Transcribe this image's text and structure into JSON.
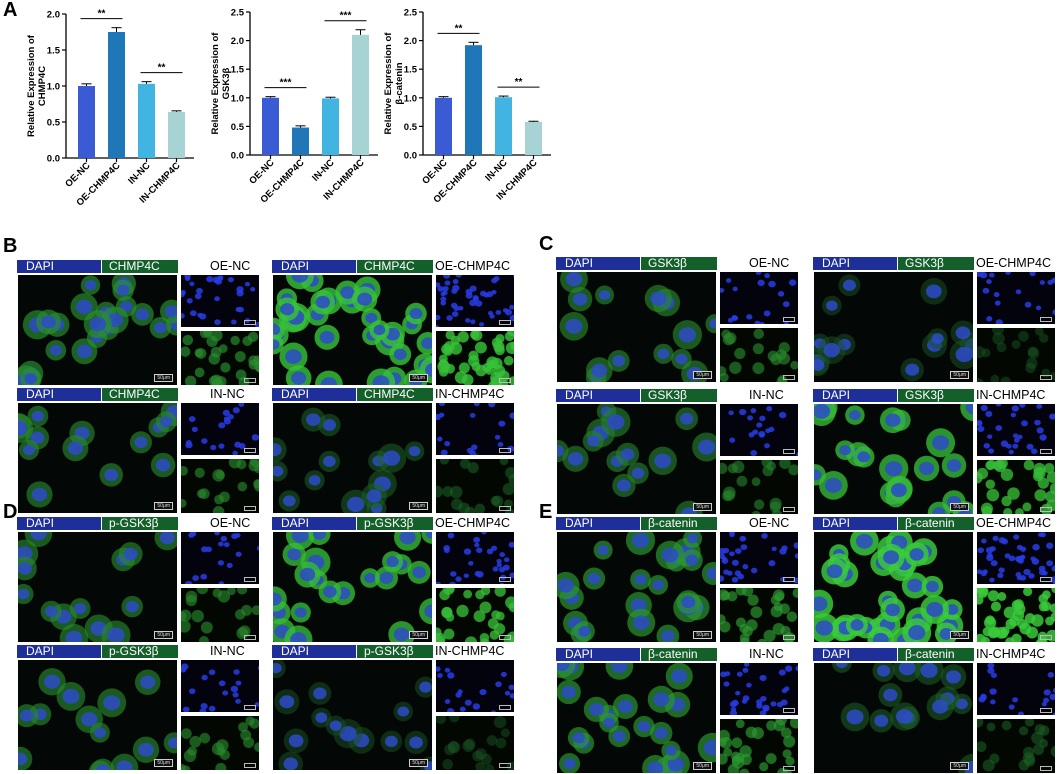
{
  "panel_labels": {
    "A": "A",
    "B": "B",
    "C": "C",
    "D": "D",
    "E": "E"
  },
  "chart_data": [
    {
      "type": "bar",
      "categories": [
        "OE-NC",
        "OE-CHMP4C",
        "IN-NC",
        "IN-CHMP4C"
      ],
      "values": [
        1.0,
        1.75,
        1.03,
        0.64
      ],
      "errors": [
        0.03,
        0.06,
        0.03,
        0.015
      ],
      "colors": [
        "#3b5bd4",
        "#1f77b8",
        "#41b4e2",
        "#a8d3d4"
      ],
      "title": "",
      "xlabel": "",
      "ylabel": "Relative Expression of\nCHMP4C",
      "ylim": [
        0,
        2.0
      ],
      "yticks": [
        "0.0",
        "0.5",
        "1.0",
        "1.5",
        "2.0"
      ],
      "significance": [
        {
          "from": 0,
          "to": 1,
          "label": "**"
        },
        {
          "from": 2,
          "to": 3,
          "label": "**"
        }
      ],
      "grid": false,
      "legend": "none"
    },
    {
      "type": "bar",
      "categories": [
        "OE-NC",
        "OE-CHMP4C",
        "IN-NC",
        "IN-CHMP4C"
      ],
      "values": [
        1.0,
        0.48,
        0.99,
        2.1
      ],
      "errors": [
        0.02,
        0.03,
        0.02,
        0.09
      ],
      "colors": [
        "#3b5bd4",
        "#1f77b8",
        "#41b4e2",
        "#a8d3d4"
      ],
      "title": "",
      "xlabel": "",
      "ylabel": "Relative Expression of\nGSK3β",
      "ylim": [
        0,
        2.5
      ],
      "yticks": [
        "0.0",
        "0.5",
        "1.0",
        "1.5",
        "2.0",
        "2.5"
      ],
      "significance": [
        {
          "from": 0,
          "to": 1,
          "label": "***"
        },
        {
          "from": 2,
          "to": 3,
          "label": "***"
        }
      ],
      "grid": false,
      "legend": "none"
    },
    {
      "type": "bar",
      "categories": [
        "OE-NC",
        "OE-CHMP4C",
        "IN-NC",
        "IN-CHMP4C"
      ],
      "values": [
        1.0,
        1.92,
        1.01,
        0.58
      ],
      "errors": [
        0.02,
        0.05,
        0.02,
        0.01
      ],
      "colors": [
        "#3b5bd4",
        "#1f77b8",
        "#41b4e2",
        "#a8d3d4"
      ],
      "title": "",
      "xlabel": "",
      "ylabel": "Relative Expression of\nβ-catenin",
      "ylim": [
        0,
        2.5
      ],
      "yticks": [
        "0.0",
        "0.5",
        "1.0",
        "1.5",
        "2.0",
        "2.5"
      ],
      "significance": [
        {
          "from": 0,
          "to": 1,
          "label": "**"
        },
        {
          "from": 2,
          "to": 3,
          "label": "**"
        }
      ],
      "grid": false,
      "legend": "none"
    }
  ],
  "image_panels": [
    {
      "group": "B",
      "dapi": "DAPI",
      "marker": "CHMP4C",
      "condition": "OE-NC",
      "scale": "50μm",
      "green_level": 0.55,
      "cells": "medium"
    },
    {
      "group": "B",
      "dapi": "DAPI",
      "marker": "CHMP4C",
      "condition": "OE-CHMP4C",
      "scale": "50μm",
      "green_level": 0.9,
      "cells": "dense"
    },
    {
      "group": "B",
      "dapi": "DAPI",
      "marker": "CHMP4C",
      "condition": "IN-NC",
      "scale": "50μm",
      "green_level": 0.5,
      "cells": "sparse"
    },
    {
      "group": "B",
      "dapi": "DAPI",
      "marker": "CHMP4C",
      "condition": "IN-CHMP4C",
      "scale": "50μm",
      "green_level": 0.25,
      "cells": "sparse"
    },
    {
      "group": "C",
      "dapi": "DAPI",
      "marker": "GSK3β",
      "condition": "OE-NC",
      "scale": "50μm",
      "green_level": 0.5,
      "cells": "sparse"
    },
    {
      "group": "C",
      "dapi": "DAPI",
      "marker": "GSK3β",
      "condition": "OE-CHMP4C",
      "scale": "50μm",
      "green_level": 0.15,
      "cells": "sparse"
    },
    {
      "group": "C",
      "dapi": "DAPI",
      "marker": "GSK3β",
      "condition": "IN-NC",
      "scale": "50μm",
      "green_level": 0.45,
      "cells": "sparse"
    },
    {
      "group": "C",
      "dapi": "DAPI",
      "marker": "GSK3β",
      "condition": "IN-CHMP4C",
      "scale": "50μm",
      "green_level": 0.85,
      "cells": "medium"
    },
    {
      "group": "D",
      "dapi": "DAPI",
      "marker": "p-GSK3β",
      "condition": "OE-NC",
      "scale": "50μm",
      "green_level": 0.5,
      "cells": "sparse"
    },
    {
      "group": "D",
      "dapi": "DAPI",
      "marker": "p-GSK3β",
      "condition": "OE-CHMP4C",
      "scale": "50μm",
      "green_level": 0.85,
      "cells": "medium"
    },
    {
      "group": "D",
      "dapi": "DAPI",
      "marker": "p-GSK3β",
      "condition": "IN-NC",
      "scale": "50μm",
      "green_level": 0.5,
      "cells": "sparse"
    },
    {
      "group": "D",
      "dapi": "DAPI",
      "marker": "p-GSK3β",
      "condition": "IN-CHMP4C",
      "scale": "50μm",
      "green_level": 0.15,
      "cells": "sparse"
    },
    {
      "group": "E",
      "dapi": "DAPI",
      "marker": "β-catenin",
      "condition": "OE-NC",
      "scale": "50μm",
      "green_level": 0.6,
      "cells": "medium"
    },
    {
      "group": "E",
      "dapi": "DAPI",
      "marker": "β-catenin",
      "condition": "OE-CHMP4C",
      "scale": "50μm",
      "green_level": 0.95,
      "cells": "dense"
    },
    {
      "group": "E",
      "dapi": "DAPI",
      "marker": "β-catenin",
      "condition": "IN-NC",
      "scale": "50μm",
      "green_level": 0.6,
      "cells": "medium"
    },
    {
      "group": "E",
      "dapi": "DAPI",
      "marker": "β-catenin",
      "condition": "IN-CHMP4C",
      "scale": "50μm",
      "green_level": 0.25,
      "cells": "sparse"
    }
  ]
}
